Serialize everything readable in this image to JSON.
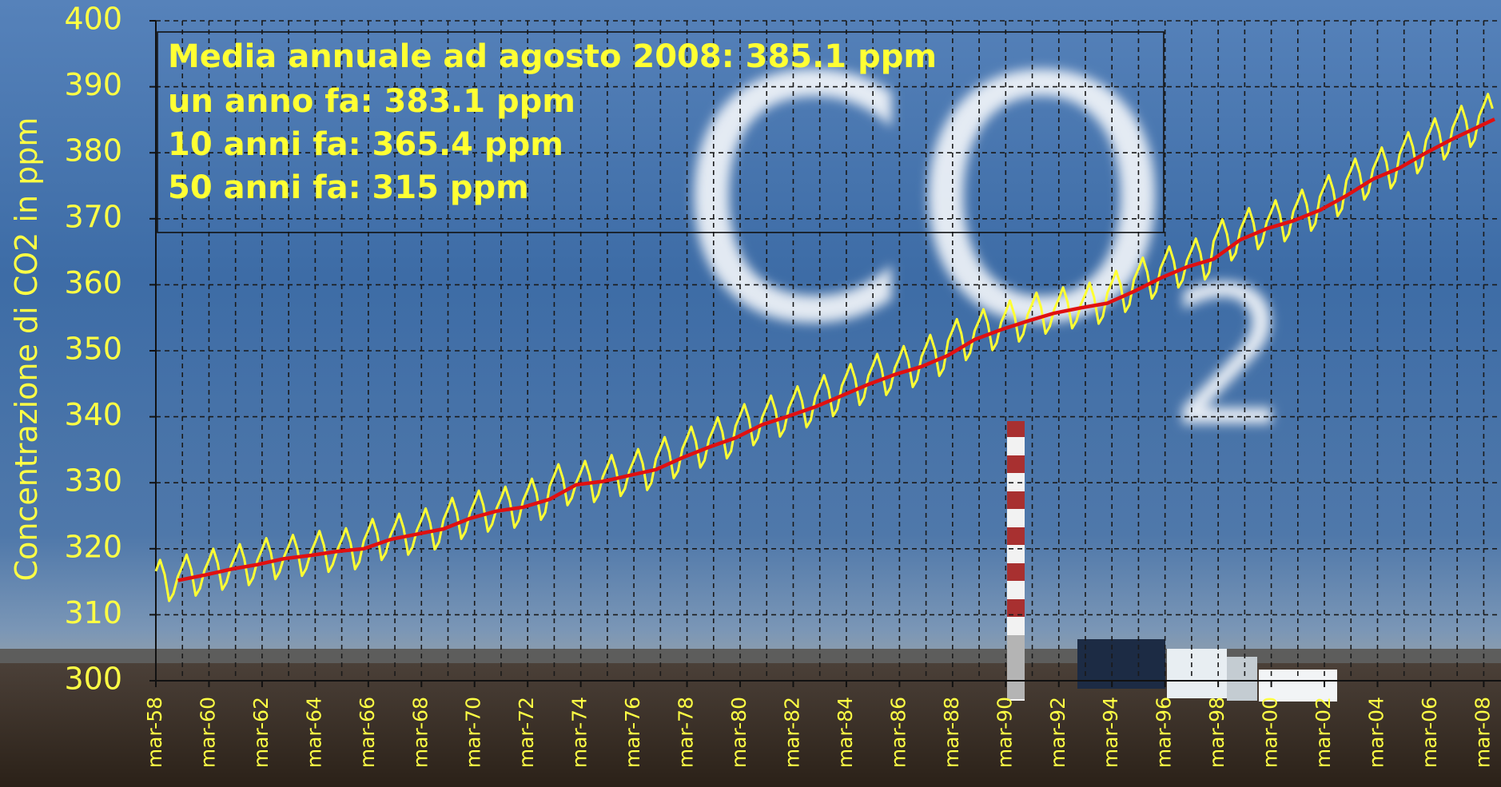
{
  "chart_data": {
    "type": "line",
    "ylabel": "Concentrazione di CO2 in ppm",
    "annotations": [
      "Media annuale ad agosto 2008: 385.1 ppm",
      "un anno fa: 383.1 ppm",
      "10 anni fa: 365.4 ppm",
      "50 anni fa: 315 ppm"
    ],
    "background_text": [
      "CO",
      "2"
    ],
    "grid": true,
    "ylim": [
      300,
      400
    ],
    "yticks": [
      300,
      310,
      320,
      330,
      340,
      350,
      360,
      370,
      380,
      390,
      400
    ],
    "xlim": [
      1958.17,
      2008.82
    ],
    "xticks": [
      {
        "value": 1958.17,
        "label": "mar-58"
      },
      {
        "value": 1960.17,
        "label": "mar-60"
      },
      {
        "value": 1962.17,
        "label": "mar-62"
      },
      {
        "value": 1964.17,
        "label": "mar-64"
      },
      {
        "value": 1966.17,
        "label": "mar-66"
      },
      {
        "value": 1968.17,
        "label": "mar-68"
      },
      {
        "value": 1970.17,
        "label": "mar-70"
      },
      {
        "value": 1972.17,
        "label": "mar-72"
      },
      {
        "value": 1974.17,
        "label": "mar-74"
      },
      {
        "value": 1976.17,
        "label": "mar-76"
      },
      {
        "value": 1978.17,
        "label": "mar-78"
      },
      {
        "value": 1980.17,
        "label": "mar-80"
      },
      {
        "value": 1982.17,
        "label": "mar-82"
      },
      {
        "value": 1984.17,
        "label": "mar-84"
      },
      {
        "value": 1986.17,
        "label": "mar-86"
      },
      {
        "value": 1988.17,
        "label": "mar-88"
      },
      {
        "value": 1990.17,
        "label": "mar-90"
      },
      {
        "value": 1992.17,
        "label": "mar-92"
      },
      {
        "value": 1994.17,
        "label": "mar-94"
      },
      {
        "value": 1996.17,
        "label": "mar-96"
      },
      {
        "value": 1998.17,
        "label": "mar-98"
      },
      {
        "value": 2000.17,
        "label": "mar-00"
      },
      {
        "value": 2002.17,
        "label": "mar-02"
      },
      {
        "value": 2004.17,
        "label": "mar-04"
      },
      {
        "value": 2006.17,
        "label": "mar-06"
      },
      {
        "value": 2008.17,
        "label": "mar-08"
      }
    ],
    "xminorticks": [
      1959.17,
      1961.17,
      1963.17,
      1965.17,
      1967.17,
      1969.17,
      1971.17,
      1973.17,
      1975.17,
      1977.17,
      1979.17,
      1981.17,
      1983.17,
      1985.17,
      1987.17,
      1989.17,
      1991.17,
      1993.17,
      1995.17,
      1997.17,
      1999.17,
      2001.17,
      2003.17,
      2005.17,
      2007.17
    ],
    "series": [
      {
        "color": "#ffff33",
        "x": [
          1958.17,
          1958.33,
          1958.5,
          1958.67,
          1958.83,
          1959,
          1959.17,
          1959.33,
          1959.5,
          1959.67,
          1959.83,
          1960,
          1960.17,
          1960.33,
          1960.5,
          1960.67,
          1960.83,
          1961,
          1961.17,
          1961.33,
          1961.5,
          1961.67,
          1961.83,
          1962,
          1962.17,
          1962.33,
          1962.5,
          1962.67,
          1962.83,
          1963,
          1963.17,
          1963.33,
          1963.5,
          1963.67,
          1963.83,
          1964,
          1964.17,
          1964.33,
          1964.5,
          1964.67,
          1964.83,
          1965,
          1965.17,
          1965.33,
          1965.5,
          1965.67,
          1965.83,
          1966,
          1966.17,
          1966.33,
          1966.5,
          1966.67,
          1966.83,
          1967,
          1967.17,
          1967.33,
          1967.5,
          1967.67,
          1967.83,
          1968,
          1968.17,
          1968.33,
          1968.5,
          1968.67,
          1968.83,
          1969,
          1969.17,
          1969.33,
          1969.5,
          1969.67,
          1969.83,
          1970,
          1970.17,
          1970.33,
          1970.5,
          1970.67,
          1970.83,
          1971,
          1971.17,
          1971.33,
          1971.5,
          1971.67,
          1971.83,
          1972,
          1972.17,
          1972.33,
          1972.5,
          1972.67,
          1972.83,
          1973,
          1973.17,
          1973.33,
          1973.5,
          1973.67,
          1973.83,
          1974,
          1974.17,
          1974.33,
          1974.5,
          1974.67,
          1974.83,
          1975,
          1975.17,
          1975.33,
          1975.5,
          1975.67,
          1975.83,
          1976,
          1976.17,
          1976.33,
          1976.5,
          1976.67,
          1976.83,
          1977,
          1977.17,
          1977.33,
          1977.5,
          1977.67,
          1977.83,
          1978,
          1978.17,
          1978.33,
          1978.5,
          1978.67,
          1978.83,
          1979,
          1979.17,
          1979.33,
          1979.5,
          1979.67,
          1979.83,
          1980,
          1980.17,
          1980.33,
          1980.5,
          1980.67,
          1980.83,
          1981,
          1981.17,
          1981.33,
          1981.5,
          1981.67,
          1981.83,
          1982,
          1982.17,
          1982.33,
          1982.5,
          1982.67,
          1982.83,
          1983,
          1983.17,
          1983.33,
          1983.5,
          1983.67,
          1983.83,
          1984,
          1984.17,
          1984.33,
          1984.5,
          1984.67,
          1984.83,
          1985,
          1985.17,
          1985.33,
          1985.5,
          1985.67,
          1985.83,
          1986,
          1986.17,
          1986.33,
          1986.5,
          1986.67,
          1986.83,
          1987,
          1987.17,
          1987.33,
          1987.5,
          1987.67,
          1987.83,
          1988,
          1988.17,
          1988.33,
          1988.5,
          1988.67,
          1988.83,
          1989,
          1989.17,
          1989.33,
          1989.5,
          1989.67,
          1989.83,
          1990,
          1990.17,
          1990.33,
          1990.5,
          1990.67,
          1990.83,
          1991,
          1991.17,
          1991.33,
          1991.5,
          1991.67,
          1991.83,
          1992,
          1992.17,
          1992.33,
          1992.5,
          1992.67,
          1992.83,
          1993,
          1993.17,
          1993.33,
          1993.5,
          1993.67,
          1993.83,
          1994,
          1994.17,
          1994.33,
          1994.5,
          1994.67,
          1994.83,
          1995,
          1995.17,
          1995.33,
          1995.5,
          1995.67,
          1995.83,
          1996,
          1996.17,
          1996.33,
          1996.5,
          1996.67,
          1996.83,
          1997,
          1997.17,
          1997.33,
          1997.5,
          1997.67,
          1997.83,
          1998,
          1998.17,
          1998.33,
          1998.5,
          1998.67,
          1998.83,
          1999,
          1999.17,
          1999.33,
          1999.5,
          1999.67,
          1999.83,
          2000,
          2000.17,
          2000.33,
          2000.5,
          2000.67,
          2000.83,
          2001,
          2001.17,
          2001.33,
          2001.5,
          2001.67,
          2001.83,
          2002,
          2002.17,
          2002.33,
          2002.5,
          2002.67,
          2002.83,
          2003,
          2003.17,
          2003.33,
          2003.5,
          2003.67,
          2003.83,
          2004,
          2004.17,
          2004.33,
          2004.5,
          2004.67,
          2004.83,
          2005,
          2005.17,
          2005.33,
          2005.5,
          2005.67,
          2005.83,
          2006,
          2006.17,
          2006.33,
          2006.5,
          2006.67,
          2006.83,
          2007,
          2007.17,
          2007.33,
          2007.5,
          2007.67,
          2007.83,
          2008,
          2008.17,
          2008.33,
          2008.5
        ],
        "values": [
          316.6,
          318.3,
          316.1,
          312.1,
          313.2,
          315.8,
          317.4,
          319.1,
          316.9,
          312.9,
          314.0,
          316.7,
          318.3,
          320.0,
          317.8,
          313.8,
          314.9,
          317.4,
          319.0,
          320.7,
          318.5,
          314.5,
          315.6,
          318.3,
          319.9,
          321.6,
          319.4,
          315.4,
          316.5,
          318.8,
          320.4,
          322.1,
          319.9,
          315.9,
          317.0,
          319.4,
          321.0,
          322.7,
          320.5,
          316.5,
          317.6,
          319.8,
          321.4,
          323.1,
          320.9,
          316.9,
          318.0,
          321.2,
          322.8,
          324.5,
          322.3,
          318.3,
          319.4,
          322.0,
          323.6,
          325.3,
          323.1,
          319.1,
          320.2,
          322.8,
          324.4,
          326.1,
          323.9,
          319.9,
          321.0,
          324.4,
          326.0,
          327.7,
          325.5,
          321.5,
          322.6,
          325.5,
          327.1,
          328.8,
          326.6,
          322.6,
          323.7,
          326.1,
          327.7,
          329.4,
          327.2,
          323.2,
          324.3,
          327.3,
          328.9,
          330.6,
          328.4,
          324.4,
          325.5,
          329.5,
          331.1,
          332.8,
          330.6,
          326.6,
          327.7,
          330.0,
          331.6,
          333.3,
          331.1,
          327.1,
          328.2,
          330.9,
          332.5,
          334.2,
          332.0,
          328.0,
          329.1,
          331.8,
          333.4,
          335.1,
          332.9,
          328.9,
          330.0,
          333.6,
          335.2,
          336.9,
          334.7,
          330.7,
          331.8,
          335.2,
          336.8,
          338.5,
          336.3,
          332.3,
          333.4,
          336.6,
          338.2,
          339.9,
          337.7,
          333.7,
          334.8,
          338.6,
          340.2,
          341.9,
          339.7,
          335.7,
          336.8,
          339.9,
          341.5,
          343.2,
          341.0,
          337.0,
          338.1,
          341.3,
          342.9,
          344.6,
          342.4,
          338.4,
          339.5,
          343.0,
          344.6,
          346.3,
          344.1,
          340.1,
          341.2,
          344.7,
          346.3,
          348.0,
          345.8,
          341.8,
          342.9,
          346.2,
          347.8,
          349.5,
          347.3,
          343.3,
          344.4,
          347.4,
          349.0,
          350.7,
          348.5,
          344.5,
          345.6,
          349.1,
          350.7,
          352.4,
          350.2,
          346.2,
          347.3,
          351.5,
          353.1,
          354.8,
          352.6,
          348.6,
          349.7,
          353.0,
          354.6,
          356.3,
          354.1,
          350.1,
          351.2,
          354.3,
          355.9,
          357.6,
          355.4,
          351.4,
          352.5,
          355.5,
          357.1,
          358.8,
          356.6,
          352.6,
          353.7,
          356.3,
          357.9,
          359.6,
          357.4,
          353.4,
          354.5,
          357.0,
          358.6,
          360.3,
          358.1,
          354.1,
          355.2,
          358.8,
          360.4,
          362.1,
          359.9,
          355.9,
          357.0,
          360.8,
          362.4,
          364.1,
          361.9,
          357.9,
          359.0,
          362.5,
          364.1,
          365.8,
          363.6,
          359.6,
          360.7,
          363.7,
          365.3,
          367.0,
          364.8,
          360.8,
          361.9,
          366.6,
          368.2,
          369.9,
          367.7,
          363.7,
          364.8,
          368.3,
          369.9,
          371.6,
          369.4,
          365.4,
          366.5,
          369.5,
          371.1,
          372.8,
          370.6,
          366.6,
          367.7,
          371.1,
          372.7,
          374.4,
          372.2,
          368.2,
          369.3,
          373.3,
          374.9,
          376.6,
          374.4,
          370.4,
          371.5,
          375.8,
          377.4,
          379.1,
          376.9,
          372.9,
          374.0,
          377.5,
          379.1,
          380.8,
          378.6,
          374.6,
          375.7,
          379.8,
          381.4,
          383.1,
          380.9,
          376.9,
          378.0,
          381.9,
          383.5,
          385.2,
          383.0,
          379.0,
          380.1,
          383.8,
          385.4,
          387.1,
          384.9,
          380.9,
          382.0,
          385.6,
          387.2,
          388.9,
          386.7
        ]
      },
      {
        "color": "#e01010",
        "x": [
          1959,
          1960,
          1961,
          1962,
          1963,
          1964,
          1965,
          1966,
          1967,
          1968,
          1969,
          1970,
          1971,
          1972,
          1973,
          1974,
          1975,
          1976,
          1977,
          1978,
          1979,
          1980,
          1981,
          1982,
          1983,
          1984,
          1985,
          1986,
          1987,
          1988,
          1989,
          1990,
          1991,
          1992,
          1993,
          1994,
          1995,
          1996,
          1997,
          1998,
          1999,
          2000,
          2001,
          2002,
          2003,
          2004,
          2005,
          2006,
          2007,
          2008,
          2008.58
        ],
        "values": [
          315.2,
          316.0,
          316.9,
          317.6,
          318.5,
          319.0,
          319.6,
          320.0,
          321.4,
          322.2,
          323.0,
          324.6,
          325.7,
          326.3,
          327.5,
          329.7,
          330.2,
          331.1,
          332.0,
          333.8,
          335.4,
          336.8,
          338.8,
          340.1,
          341.5,
          343.2,
          344.9,
          346.4,
          347.6,
          349.3,
          351.7,
          353.2,
          354.5,
          355.7,
          356.5,
          357.2,
          359.0,
          361.0,
          362.7,
          363.9,
          366.8,
          368.5,
          369.7,
          371.3,
          373.5,
          376.0,
          377.7,
          380.0,
          382.1,
          384.0,
          385.1
        ]
      }
    ]
  }
}
